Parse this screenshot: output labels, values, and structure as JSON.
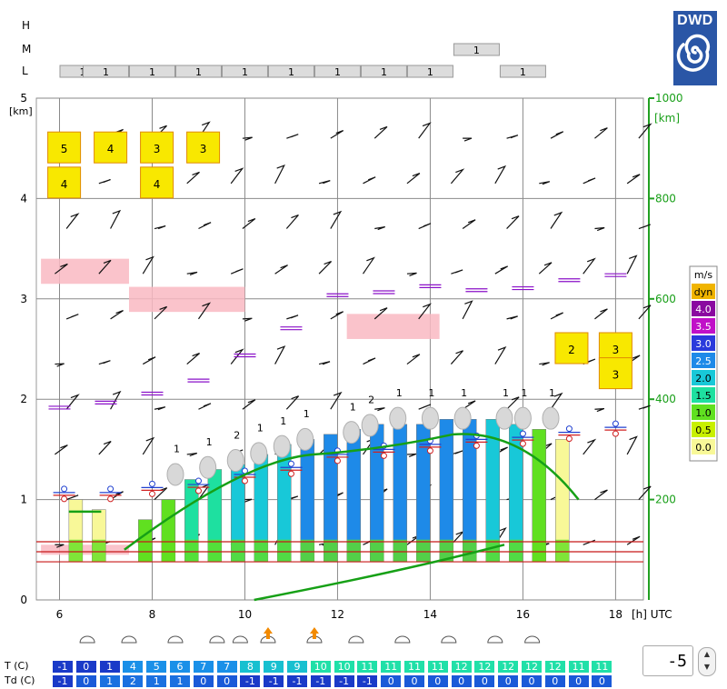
{
  "chart_data": {
    "type": "meteogram",
    "cloud_layer_labels": [
      "H",
      "M",
      "L"
    ],
    "cloud_layer_cover": {
      "H": [],
      "M": [
        {
          "x": 15,
          "value": "1"
        }
      ],
      "L": [
        {
          "x": 6.5,
          "value": "1"
        },
        {
          "x": 7,
          "value": "1"
        },
        {
          "x": 8,
          "value": "1"
        },
        {
          "x": 9,
          "value": "1"
        },
        {
          "x": 10,
          "value": "1"
        },
        {
          "x": 11,
          "value": "1"
        },
        {
          "x": 12,
          "value": "1"
        },
        {
          "x": 13,
          "value": "1"
        },
        {
          "x": 14,
          "value": "1"
        },
        {
          "x": 16,
          "value": "1"
        }
      ]
    },
    "x_ticks": [
      "6",
      "8",
      "10",
      "12",
      "14",
      "16",
      "18"
    ],
    "x_unit": "[h] UTC",
    "y_ticks_left": [
      "0",
      "1",
      "2",
      "3",
      "4",
      "5"
    ],
    "y_unit_left": "[km]",
    "y_ticks_right": [
      "200",
      "400",
      "600",
      "800",
      "1000"
    ],
    "y_unit_right": "[km]",
    "xlim": [
      5.5,
      18.6
    ],
    "ylim": [
      0,
      5
    ],
    "legend_title": "m/s",
    "legend": [
      {
        "label": "dyn",
        "color": "#f0b400"
      },
      {
        "label": "4.0",
        "color": "#8a0aa0"
      },
      {
        "label": "3.5",
        "color": "#c010c8"
      },
      {
        "label": "3.0",
        "color": "#2a3adc"
      },
      {
        "label": "2.5",
        "color": "#1e8ae8"
      },
      {
        "label": "2.0",
        "color": "#18c8d8"
      },
      {
        "label": "1.5",
        "color": "#1ee0a0"
      },
      {
        "label": "1.0",
        "color": "#60e020"
      },
      {
        "label": "0.5",
        "color": "#c8f000"
      },
      {
        "label": "0.0",
        "color": "#f8f898"
      }
    ],
    "thermal_columns": [
      {
        "x": 6.35,
        "top": 1.0,
        "color": "#f8f898"
      },
      {
        "x": 6.85,
        "top": 0.9,
        "color": "#f8f898"
      },
      {
        "x": 7.85,
        "top": 0.8,
        "color": "#60e020"
      },
      {
        "x": 8.35,
        "top": 1.0,
        "color": "#60e020"
      },
      {
        "x": 8.85,
        "top": 1.2,
        "color": "#1ee0a0"
      },
      {
        "x": 9.35,
        "top": 1.3,
        "color": "#1ee0a0"
      },
      {
        "x": 9.85,
        "top": 1.35,
        "color": "#18c8d8"
      },
      {
        "x": 10.35,
        "top": 1.45,
        "color": "#18c8d8"
      },
      {
        "x": 10.85,
        "top": 1.55,
        "color": "#18c8d8"
      },
      {
        "x": 11.35,
        "top": 1.6,
        "color": "#1e8ae8"
      },
      {
        "x": 11.85,
        "top": 1.65,
        "color": "#1e8ae8"
      },
      {
        "x": 12.35,
        "top": 1.7,
        "color": "#1e8ae8"
      },
      {
        "x": 12.85,
        "top": 1.75,
        "color": "#1e8ae8"
      },
      {
        "x": 13.35,
        "top": 1.75,
        "color": "#1e8ae8"
      },
      {
        "x": 13.85,
        "top": 1.75,
        "color": "#1e8ae8"
      },
      {
        "x": 14.35,
        "top": 1.8,
        "color": "#1e8ae8"
      },
      {
        "x": 14.85,
        "top": 1.8,
        "color": "#1e8ae8"
      },
      {
        "x": 15.35,
        "top": 1.8,
        "color": "#18c8d8"
      },
      {
        "x": 15.85,
        "top": 1.75,
        "color": "#18c8d8"
      },
      {
        "x": 16.35,
        "top": 1.7,
        "color": "#60e020"
      },
      {
        "x": 16.85,
        "top": 1.6,
        "color": "#f8f898"
      }
    ],
    "cumulus_bases": [
      {
        "x": 8.5,
        "value": "1"
      },
      {
        "x": 9.2,
        "value": "1"
      },
      {
        "x": 9.8,
        "value": "2"
      },
      {
        "x": 10.3,
        "value": "1"
      },
      {
        "x": 10.8,
        "value": "1"
      },
      {
        "x": 11.3,
        "value": "1"
      },
      {
        "x": 12.3,
        "value": "1"
      },
      {
        "x": 12.7,
        "value": "2"
      },
      {
        "x": 13.3,
        "value": "1"
      },
      {
        "x": 14.0,
        "value": "1"
      },
      {
        "x": 14.7,
        "value": "1"
      },
      {
        "x": 15.6,
        "value": "1"
      },
      {
        "x": 16.0,
        "value": "1"
      },
      {
        "x": 16.6,
        "value": "1"
      }
    ],
    "cloud_boxes": [
      {
        "x": 6.1,
        "y": 4.5,
        "value": "5"
      },
      {
        "x": 6.1,
        "y": 4.15,
        "value": "4"
      },
      {
        "x": 7.1,
        "y": 4.5,
        "value": "4"
      },
      {
        "x": 8.1,
        "y": 4.5,
        "value": "3"
      },
      {
        "x": 8.1,
        "y": 4.15,
        "value": "4"
      },
      {
        "x": 9.1,
        "y": 4.5,
        "value": "3"
      },
      {
        "x": 17.05,
        "y": 2.5,
        "value": "2"
      },
      {
        "x": 18.0,
        "y": 2.5,
        "value": "3"
      },
      {
        "x": 18.0,
        "y": 2.25,
        "value": "3"
      }
    ],
    "temperature_row_label": "T  (C)",
    "temperature": [
      "-1",
      "0",
      "1",
      "4",
      "5",
      "6",
      "7",
      "7",
      "8",
      "9",
      "9",
      "10",
      "10",
      "11",
      "11",
      "11",
      "11",
      "12",
      "12",
      "12",
      "12",
      "12",
      "11",
      "11"
    ],
    "dewpoint_row_label": "Td (C)",
    "dewpoint": [
      "-1",
      "0",
      "1",
      "2",
      "1",
      "1",
      "0",
      "0",
      "-1",
      "-1",
      "-1",
      "-1",
      "-1",
      "-1",
      "0",
      "0",
      "0",
      "0",
      "0",
      "0",
      "0",
      "0",
      "0",
      "0"
    ],
    "time_offset": "-5"
  },
  "logo": {
    "text": "DWD"
  }
}
